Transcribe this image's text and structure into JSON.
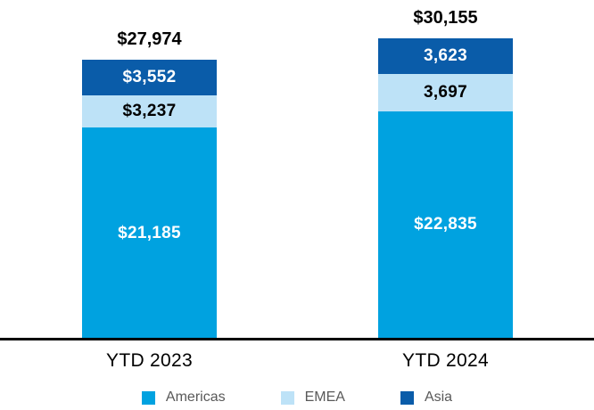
{
  "chart_data": {
    "type": "bar",
    "subtype": "stacked",
    "title": "",
    "xlabel": "",
    "ylabel": "",
    "categories": [
      "YTD 2023",
      "YTD 2024"
    ],
    "series": [
      {
        "name": "Americas",
        "color": "#00A2E0",
        "values": [
          21185,
          22835
        ],
        "labels": [
          "$21,185",
          "$22,835"
        ],
        "label_color": "#FFFFFF"
      },
      {
        "name": "EMEA",
        "color": "#BDE2F7",
        "values": [
          3237,
          3697
        ],
        "labels": [
          "$3,237",
          "3,697"
        ],
        "label_color": "#000000"
      },
      {
        "name": "Asia",
        "color": "#0A5CA9",
        "values": [
          3552,
          3623
        ],
        "labels": [
          "$3,552",
          "3,623"
        ],
        "label_color": "#FFFFFF"
      }
    ],
    "totals": [
      27974,
      30155
    ],
    "total_labels": [
      "$27,974",
      "$30,155"
    ],
    "legend": [
      "Americas",
      "EMEA",
      "Asia"
    ],
    "legend_position": "bottom",
    "legend_text_color": "#595959",
    "axis_line": true,
    "axis_line_color": "#000000",
    "grid": false,
    "ylim": [
      0,
      30155
    ]
  }
}
